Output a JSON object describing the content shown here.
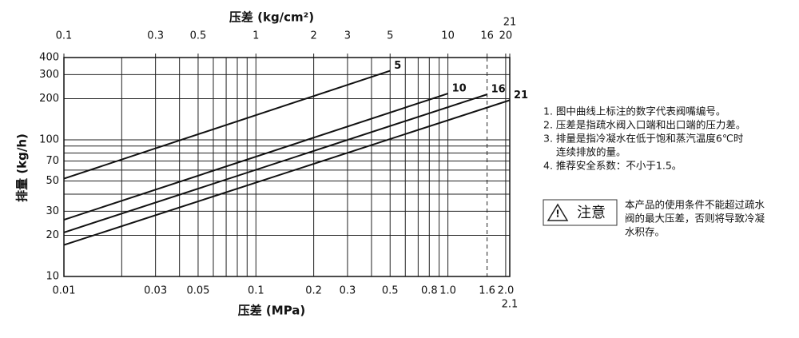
{
  "chart_data": {
    "type": "line",
    "x_title": "压差 (MPa)",
    "x2_title": "压差 (kg/cm²)",
    "y_title": "排量 (kg/h)",
    "log_x": true,
    "log_y": true,
    "grid": true,
    "xlim": [
      0.01,
      2.1
    ],
    "xticks": [
      0.01,
      0.03,
      0.05,
      0.1,
      0.2,
      0.3,
      0.5,
      0.8,
      {
        "value": 1.0,
        "label": "1.0"
      },
      {
        "value": 1.6,
        "label": "1.6",
        "dashed": true
      },
      {
        "value": 2.0,
        "label": "2.0"
      },
      2.1
    ],
    "xminor": [
      0.02,
      0.04,
      0.06,
      0.07,
      0.08,
      0.09,
      0.4,
      0.6,
      0.7,
      0.9
    ],
    "x2lim": [
      0.1,
      21
    ],
    "x2ticks": [
      0.1,
      0.3,
      0.5,
      1,
      2,
      3,
      5,
      10,
      16,
      20,
      21
    ],
    "ylim": [
      10,
      400
    ],
    "yticks": [
      10,
      20,
      30,
      50,
      70,
      100,
      200,
      300,
      400
    ],
    "yminor": [
      40,
      60,
      80,
      90
    ],
    "series": [
      {
        "name": "5",
        "color": "#111111",
        "x": [
          0.01,
          0.5
        ],
        "values": [
          52,
          320
        ]
      },
      {
        "name": "10",
        "color": "#111111",
        "x": [
          0.01,
          1.0
        ],
        "values": [
          26,
          218
        ]
      },
      {
        "name": "16",
        "color": "#111111",
        "x": [
          0.01,
          1.6
        ],
        "values": [
          21,
          215
        ]
      },
      {
        "name": "21",
        "color": "#111111",
        "x": [
          0.01,
          2.1
        ],
        "values": [
          17,
          195
        ]
      }
    ]
  },
  "notes": [
    [
      "1. 图中曲线上标注的数字代表阀嘴编号。"
    ],
    [
      "2. 压差是指疏水阀入口端和出口端的压力差。"
    ],
    [
      "3. 排量是指冷凝水在低于饱和蒸汽温度6℃时",
      "连续排放的量。"
    ],
    [
      "4. 推荐安全系数：不小于1.5。"
    ]
  ],
  "caution": {
    "label": "注意",
    "lines": [
      "本产品的使用条件不能超过疏水",
      "阀的最大压差，否则将导致冷凝",
      "水积存。"
    ]
  }
}
